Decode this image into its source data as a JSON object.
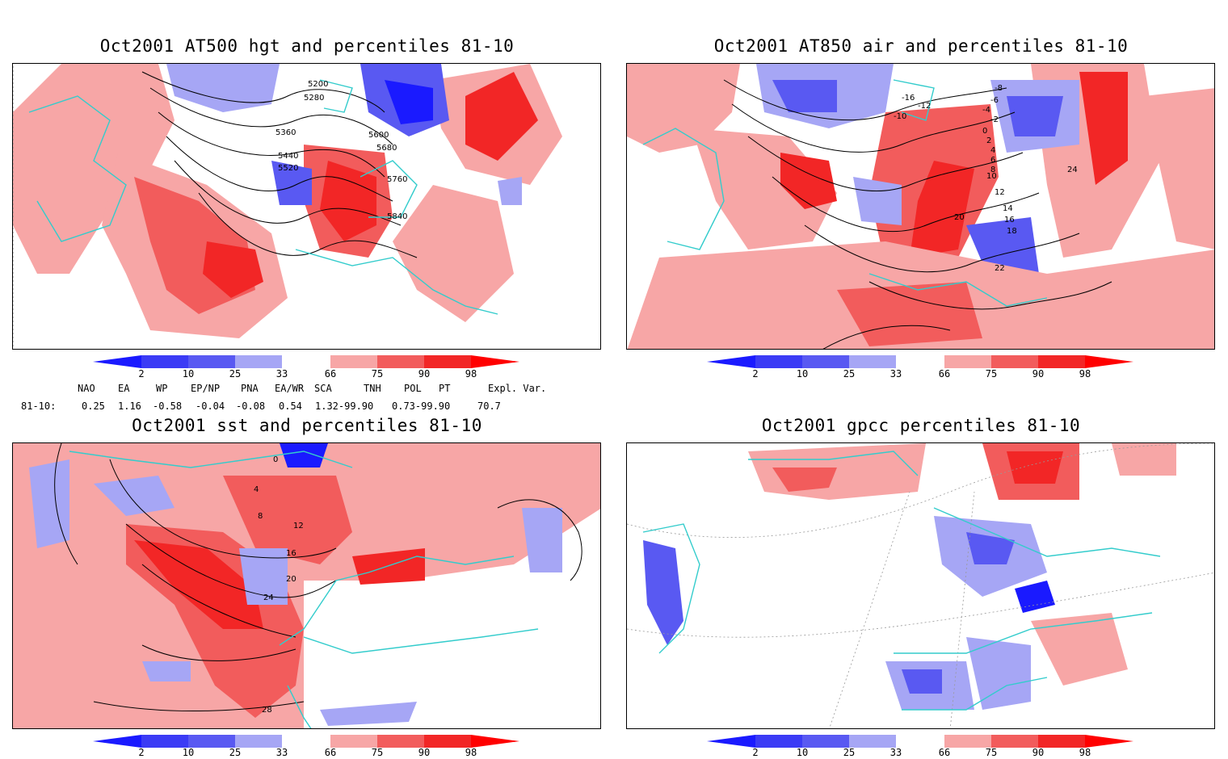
{
  "colors": {
    "blue_dark": "#1a1aff",
    "blue_mid": "#5959f2",
    "blue_light": "#a6a6f5",
    "red_light": "#f7a6a6",
    "red_mid": "#f25c5c",
    "red_dark": "#f22626",
    "red_extreme": "#ff0000",
    "coast": "#33cccc",
    "contour": "#000000"
  },
  "panels": [
    {
      "title": "Oct2001 AT500 hgt and percentiles 81-10",
      "contour_labels": [
        "5200",
        "5280",
        "5360",
        "5440",
        "5520",
        "5600",
        "5680",
        "5760",
        "5840"
      ]
    },
    {
      "title": "Oct2001 AT850 air and percentiles 81-10",
      "contour_labels": [
        "-16",
        "-12",
        "-10",
        "-8",
        "-6",
        "-4",
        "-2",
        "0",
        "2",
        "4",
        "6",
        "8",
        "10",
        "12",
        "14",
        "16",
        "18",
        "20",
        "22",
        "24"
      ]
    },
    {
      "title": "Oct2001 sst and percentiles 81-10",
      "contour_labels": [
        "0",
        "4",
        "8",
        "12",
        "16",
        "20",
        "24",
        "28"
      ]
    },
    {
      "title": "Oct2001 gpcc percentiles 81-10",
      "contour_labels": []
    }
  ],
  "colorbar": {
    "labels": [
      "2",
      "10",
      "25",
      "33",
      "66",
      "75",
      "90",
      "98"
    ]
  },
  "indices": {
    "headers": [
      "NAO",
      "EA",
      "WP",
      "EP/NP",
      "PNA",
      "EA/WR",
      "SCA",
      "TNH",
      "POL",
      "PT",
      "Expl. Var."
    ],
    "row_label": "81-10:",
    "values": [
      "0.25",
      "1.16",
      "-0.58",
      "-0.04",
      "-0.08",
      "0.54",
      "1.32-99.90",
      "0.73-99.90",
      "70.7"
    ]
  }
}
